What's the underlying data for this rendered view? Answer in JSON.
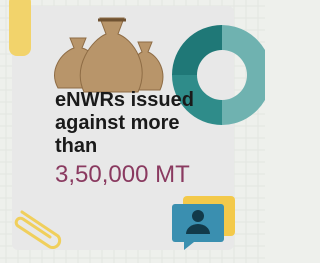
{
  "card": {
    "lines": [
      "eNWRs issued",
      "against more",
      "than"
    ],
    "highlight": "3,50,000 MT"
  }
}
